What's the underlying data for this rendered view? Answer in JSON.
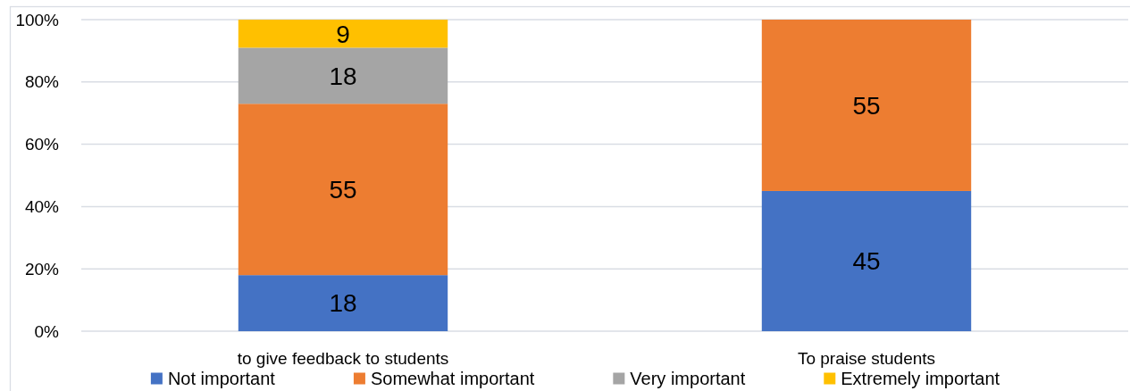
{
  "chart_data": {
    "type": "bar",
    "stacked": true,
    "categories": [
      "to give feedback to students",
      "To praise students"
    ],
    "series": [
      {
        "name": "Not important",
        "color": "#4472c4",
        "values": [
          18,
          45
        ]
      },
      {
        "name": "Somewhat important",
        "color": "#ed7d31",
        "values": [
          55,
          55
        ]
      },
      {
        "name": "Very important",
        "color": "#a5a5a5",
        "values": [
          18,
          null
        ]
      },
      {
        "name": "Extremely important",
        "color": "#ffc000",
        "values": [
          9,
          null
        ]
      }
    ],
    "ylim": [
      0,
      100
    ],
    "yticks": [
      {
        "value": 0,
        "label": "0%"
      },
      {
        "value": 20,
        "label": "20%"
      },
      {
        "value": 40,
        "label": "40%"
      },
      {
        "value": 60,
        "label": "60%"
      },
      {
        "value": 80,
        "label": "80%"
      },
      {
        "value": 100,
        "label": "100%"
      }
    ],
    "grid": "y",
    "legend": "bottom",
    "data_labels": true
  }
}
